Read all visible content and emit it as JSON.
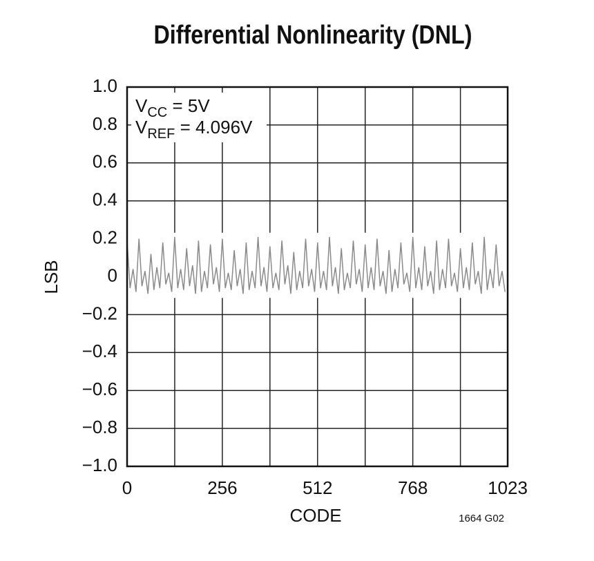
{
  "chart_data": {
    "type": "line",
    "title": "Differential Nonlinearity (DNL)",
    "x_label": "CODE",
    "y_label": "LSB",
    "annotations": [
      {
        "main": "V",
        "sub": "CC",
        "rest": " = 5V"
      },
      {
        "main": "V",
        "sub": "REF",
        "rest": " = 4.096V"
      }
    ],
    "footnote": "1664 G02",
    "xlim": [
      0,
      1023
    ],
    "ylim": [
      -1,
      1
    ],
    "xticks": [
      0,
      256,
      512,
      768,
      1023
    ],
    "xgrid_lines": [
      128,
      384,
      640,
      896
    ],
    "yticks": [
      {
        "value": -1,
        "label": "−1.0"
      },
      {
        "value": -0.8,
        "label": "−0.8"
      },
      {
        "value": -0.6,
        "label": "−0.6"
      },
      {
        "value": -0.4,
        "label": "−0.4"
      },
      {
        "value": -0.2,
        "label": "−0.2"
      },
      0,
      0.2,
      0.4,
      0.6,
      0.8,
      {
        "value": 1,
        "label": "1.0"
      }
    ],
    "grid": true,
    "x": [
      0,
      8,
      16,
      24,
      32,
      40,
      48,
      56,
      64,
      72,
      80,
      88,
      96,
      104,
      112,
      120,
      128,
      136,
      144,
      152,
      160,
      168,
      176,
      184,
      192,
      200,
      208,
      216,
      224,
      232,
      240,
      248,
      256,
      264,
      272,
      280,
      288,
      296,
      304,
      312,
      320,
      328,
      336,
      344,
      352,
      360,
      368,
      376,
      384,
      392,
      400,
      408,
      416,
      424,
      432,
      440,
      448,
      456,
      464,
      472,
      480,
      488,
      496,
      504,
      512,
      520,
      528,
      536,
      544,
      552,
      560,
      568,
      576,
      584,
      592,
      600,
      608,
      616,
      624,
      632,
      640,
      648,
      656,
      664,
      672,
      680,
      688,
      696,
      704,
      712,
      720,
      728,
      736,
      744,
      752,
      760,
      768,
      776,
      784,
      792,
      800,
      808,
      816,
      824,
      832,
      840,
      848,
      856,
      864,
      872,
      880,
      888,
      896,
      904,
      912,
      920,
      928,
      936,
      944,
      952,
      960,
      968,
      976,
      984,
      992,
      1000,
      1008,
      1016
    ],
    "series": [
      {
        "name": "DNL",
        "color": "#8a8a8a",
        "values": [
          0.19,
          -0.06,
          0.04,
          -0.08,
          0.2,
          -0.05,
          0.03,
          -0.09,
          0.12,
          -0.07,
          0.05,
          -0.06,
          0.18,
          -0.04,
          0.02,
          -0.08,
          0.21,
          -0.06,
          0.04,
          -0.07,
          0.15,
          -0.05,
          0.06,
          -0.09,
          0.19,
          -0.08,
          0.03,
          -0.06,
          0.17,
          -0.04,
          0.05,
          -0.08,
          0.2,
          -0.06,
          0.02,
          -0.07,
          0.14,
          -0.05,
          0.04,
          -0.09,
          0.18,
          -0.07,
          0.03,
          -0.06,
          0.21,
          -0.05,
          0.05,
          -0.08,
          0.16,
          -0.06,
          0.02,
          -0.07,
          0.19,
          -0.04,
          0.06,
          -0.09,
          0.13,
          -0.07,
          0.03,
          -0.06,
          0.2,
          -0.05,
          0.04,
          -0.08,
          0.18,
          -0.06,
          0.03,
          -0.07,
          0.21,
          -0.05,
          0.05,
          -0.09,
          0.15,
          -0.07,
          0.02,
          -0.06,
          0.19,
          -0.04,
          0.04,
          -0.08,
          0.17,
          -0.06,
          0.05,
          -0.07,
          0.2,
          -0.05,
          0.03,
          -0.09,
          0.14,
          -0.08,
          0.04,
          -0.06,
          0.18,
          -0.04,
          0.02,
          -0.08,
          0.21,
          -0.06,
          0.05,
          -0.07,
          0.16,
          -0.05,
          0.03,
          -0.09,
          0.19,
          -0.07,
          0.04,
          -0.06,
          0.2,
          -0.05,
          0.02,
          -0.08,
          0.15,
          -0.06,
          0.05,
          -0.07,
          0.18,
          -0.04,
          0.03,
          -0.09,
          0.21,
          -0.07,
          0.04,
          -0.06,
          0.17,
          -0.05,
          0.03,
          -0.08
        ]
      }
    ]
  }
}
